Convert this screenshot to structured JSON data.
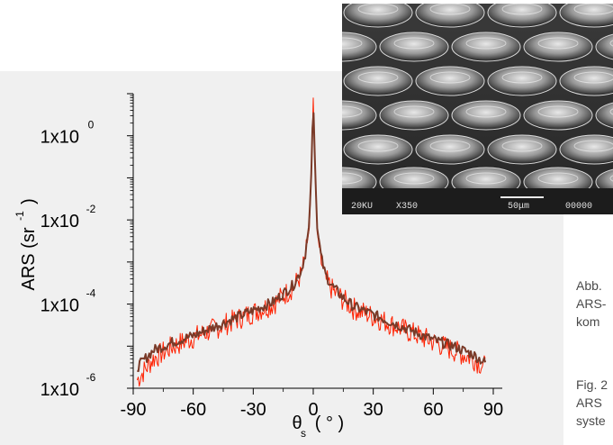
{
  "chart_data": {
    "type": "line",
    "xlabel": "θ",
    "xlabel_sub": "s",
    "xlabel_unit": "( ° )",
    "ylabel_main": "ARS (sr",
    "ylabel_exp": "-1",
    "ylabel_close": ")",
    "xlim": [
      -90,
      90
    ],
    "ylog": true,
    "ylim_exp": [
      -6,
      1
    ],
    "x_ticks": [
      -90,
      -60,
      -30,
      0,
      30,
      60,
      90
    ],
    "y_ticks": [
      {
        "base": "1x10",
        "exp": "0",
        "value_exp": 0
      },
      {
        "base": "1x10",
        "exp": "-2",
        "value_exp": -2
      },
      {
        "base": "1x10",
        "exp": "-4",
        "value_exp": -4
      },
      {
        "base": "1x10",
        "exp": "-6",
        "value_exp": -6
      }
    ],
    "series": [
      {
        "color": "#ff2000",
        "style": "noisy",
        "x": [
          -88,
          -80,
          -70,
          -60,
          -50,
          -40,
          -30,
          -20,
          -15,
          -10,
          -6,
          -4,
          -2,
          -1,
          0,
          1,
          2,
          4,
          6,
          10,
          15,
          20,
          30,
          40,
          50,
          60,
          70,
          80,
          86
        ],
        "log10_y": [
          -5.8,
          -5.3,
          -5.0,
          -4.8,
          -4.6,
          -4.4,
          -4.2,
          -4.0,
          -3.8,
          -3.6,
          -3.3,
          -2.9,
          -2.2,
          -1.0,
          0.9,
          -1.0,
          -2.3,
          -3.0,
          -3.4,
          -3.7,
          -3.9,
          -4.1,
          -4.3,
          -4.5,
          -4.7,
          -4.9,
          -5.1,
          -5.3,
          -5.5
        ]
      },
      {
        "color": "#7a3a28",
        "style": "smooth",
        "x": [
          -88,
          -80,
          -70,
          -60,
          -50,
          -40,
          -30,
          -20,
          -15,
          -10,
          -6,
          -4,
          -2,
          -1,
          0,
          1,
          2,
          4,
          6,
          10,
          15,
          20,
          30,
          40,
          50,
          60,
          70,
          80,
          86
        ],
        "log10_y": [
          -5.5,
          -5.1,
          -4.9,
          -4.75,
          -4.55,
          -4.35,
          -4.15,
          -3.95,
          -3.75,
          -3.55,
          -3.2,
          -2.8,
          -2.1,
          -0.9,
          0.9,
          -0.9,
          -2.2,
          -2.9,
          -3.3,
          -3.6,
          -3.85,
          -4.05,
          -4.25,
          -4.45,
          -4.65,
          -4.85,
          -5.0,
          -5.2,
          -5.4
        ]
      }
    ]
  },
  "sem_image": {
    "label_voltage": "20KU",
    "label_mag": "X350",
    "label_scale": "50μm",
    "label_id": "00000"
  },
  "captions": [
    {
      "text": "Abb."
    },
    {
      "text": "ARS-"
    },
    {
      "text": "kom"
    },
    {
      "text": "Fig. 2"
    },
    {
      "text": "ARS"
    },
    {
      "text": "syste"
    }
  ]
}
